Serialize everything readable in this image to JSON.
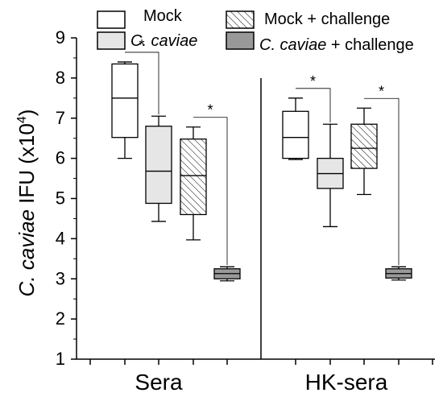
{
  "chart_data": {
    "type": "box",
    "ylabel_italic": "C. caviae",
    "ylabel_rest": " IFU (x10",
    "ylabel_exp": "4",
    "ylabel_close": ")",
    "ylim": [
      1,
      9
    ],
    "yticks": [
      "1",
      "2",
      "3",
      "4",
      "5",
      "6",
      "7",
      "8",
      "9"
    ],
    "grid": false,
    "legend_position": "top",
    "groups": [
      "Sera",
      "HK-sera"
    ],
    "series": [
      {
        "name": "Mock",
        "name_italic": false,
        "fill": "#ffffff",
        "pattern": "none",
        "boxes": [
          {
            "group": "Sera",
            "min": 6.0,
            "q1": 6.52,
            "median": 7.5,
            "q3": 8.35,
            "max": 8.4
          },
          {
            "group": "HK-sera",
            "min": 5.97,
            "q1": 6.0,
            "median": 6.52,
            "q3": 7.17,
            "max": 7.5
          }
        ]
      },
      {
        "name": "C. caviae",
        "name_italic": true,
        "fill": "#e6e6e6",
        "pattern": "none",
        "boxes": [
          {
            "group": "Sera",
            "min": 4.43,
            "q1": 4.88,
            "median": 5.68,
            "q3": 6.8,
            "max": 7.05
          },
          {
            "group": "HK-sera",
            "min": 4.3,
            "q1": 5.25,
            "median": 5.62,
            "q3": 6.0,
            "max": 6.85
          }
        ]
      },
      {
        "name": "Mock + challenge",
        "name_italic": false,
        "fill": "#ffffff",
        "pattern": "hatch",
        "boxes": [
          {
            "group": "Sera",
            "min": 3.97,
            "q1": 4.6,
            "median": 5.57,
            "q3": 6.48,
            "max": 6.78
          },
          {
            "group": "HK-sera",
            "min": 5.1,
            "q1": 5.75,
            "median": 6.25,
            "q3": 6.85,
            "max": 7.25
          }
        ]
      },
      {
        "name": "C. caviae + challenge",
        "name_italic_part": "C. caviae",
        "name_rest": " + challenge",
        "fill": "#999999",
        "pattern": "none",
        "boxes": [
          {
            "group": "Sera",
            "min": 2.95,
            "q1": 3.0,
            "median": 3.13,
            "q3": 3.25,
            "max": 3.3
          },
          {
            "group": "HK-sera",
            "min": 2.97,
            "q1": 3.02,
            "median": 3.13,
            "q3": 3.25,
            "max": 3.3
          }
        ]
      }
    ],
    "significance_marks": [
      {
        "group": "Sera",
        "from_series": 0,
        "to_series": 1,
        "label": "*"
      },
      {
        "group": "Sera",
        "from_series": 2,
        "to_series": 3,
        "label": "*"
      },
      {
        "group": "HK-sera",
        "from_series": 0,
        "to_series": 1,
        "label": "*"
      },
      {
        "group": "HK-sera",
        "from_series": 2,
        "to_series": 3,
        "label": "*"
      }
    ]
  }
}
